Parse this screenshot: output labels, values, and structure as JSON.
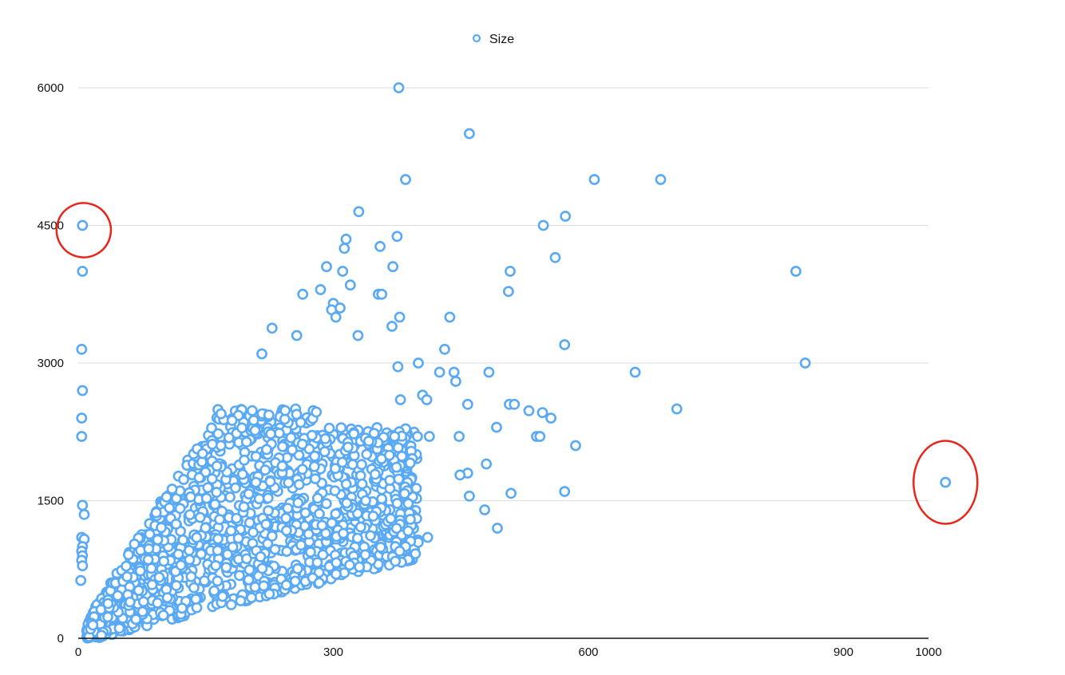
{
  "chart_data": {
    "type": "scatter",
    "title": "",
    "xlabel": "",
    "ylabel": "",
    "xlim": [
      0,
      1000
    ],
    "ylim": [
      0,
      6000
    ],
    "x_ticks": [
      0,
      300,
      600,
      900,
      1000
    ],
    "y_ticks": [
      0,
      1500,
      3000,
      4500,
      6000
    ],
    "x_tick_labels": [
      "0",
      "300",
      "600",
      "900",
      "1000"
    ],
    "y_tick_labels": [
      "0",
      "1500",
      "3000",
      "4500",
      "6000"
    ],
    "grid": "horizontal",
    "legend": {
      "position": "top-center"
    },
    "series": [
      {
        "name": "Size",
        "color": "#5aa9f5",
        "marker": "hollow-circle",
        "points": [
          [
            377,
            6000
          ],
          [
            460,
            5500
          ],
          [
            385,
            5000
          ],
          [
            607,
            5000
          ],
          [
            685,
            5000
          ],
          [
            330,
            4650
          ],
          [
            573,
            4600
          ],
          [
            547,
            4500
          ],
          [
            375,
            4380
          ],
          [
            315,
            4350
          ],
          [
            313,
            4250
          ],
          [
            355,
            4270
          ],
          [
            561,
            4150
          ],
          [
            292,
            4050
          ],
          [
            370,
            4050
          ],
          [
            311,
            4000
          ],
          [
            508,
            4000
          ],
          [
            844,
            4000
          ],
          [
            320,
            3850
          ],
          [
            285,
            3800
          ],
          [
            353,
            3750
          ],
          [
            357,
            3750
          ],
          [
            264,
            3750
          ],
          [
            506,
            3780
          ],
          [
            300,
            3650
          ],
          [
            298,
            3580
          ],
          [
            308,
            3600
          ],
          [
            303,
            3500
          ],
          [
            378,
            3500
          ],
          [
            437,
            3500
          ],
          [
            369,
            3400
          ],
          [
            228,
            3380
          ],
          [
            257,
            3300
          ],
          [
            329,
            3300
          ],
          [
            216,
            3100
          ],
          [
            431,
            3150
          ],
          [
            572,
            3200
          ],
          [
            855,
            3000
          ],
          [
            400,
            3000
          ],
          [
            376,
            2960
          ],
          [
            655,
            2900
          ],
          [
            483,
            2900
          ],
          [
            442,
            2900
          ],
          [
            425,
            2900
          ],
          [
            704,
            2500
          ],
          [
            444,
            2800
          ],
          [
            405,
            2650
          ],
          [
            410,
            2600
          ],
          [
            379,
            2600
          ],
          [
            458,
            2550
          ],
          [
            507,
            2550
          ],
          [
            513,
            2550
          ],
          [
            530,
            2480
          ],
          [
            546,
            2460
          ],
          [
            556,
            2400
          ],
          [
            492,
            2300
          ],
          [
            539,
            2200
          ],
          [
            543,
            2200
          ],
          [
            585,
            2100
          ],
          [
            413,
            2200
          ],
          [
            448,
            2200
          ],
          [
            399,
            2200
          ],
          [
            372,
            2200
          ],
          [
            480,
            1900
          ],
          [
            458,
            1800
          ],
          [
            449,
            1780
          ],
          [
            572,
            1600
          ],
          [
            509,
            1580
          ],
          [
            460,
            1550
          ],
          [
            478,
            1400
          ],
          [
            493,
            1200
          ],
          [
            411,
            1100
          ],
          [
            373,
            1000
          ],
          [
            385,
            1000
          ],
          [
            378,
            950
          ],
          [
            373,
            840
          ],
          [
            1020,
            1700
          ],
          [
            5,
            4500
          ],
          [
            5,
            4000
          ],
          [
            4,
            3150
          ],
          [
            5,
            2700
          ],
          [
            4,
            2400
          ],
          [
            4,
            2200
          ],
          [
            5,
            1450
          ],
          [
            7,
            1350
          ],
          [
            4,
            1100
          ],
          [
            7,
            1080
          ],
          [
            5,
            1000
          ],
          [
            4,
            950
          ],
          [
            5,
            900
          ],
          [
            4,
            850
          ],
          [
            5,
            790
          ],
          [
            3,
            630
          ]
        ],
        "dense_cluster": {
          "description": "thousands of overlapping points in a wedge",
          "x_range": [
            10,
            400
          ],
          "y_range": [
            0,
            2500
          ]
        }
      }
    ]
  },
  "annotations": [
    {
      "shape": "ellipse",
      "color": "#e8261c",
      "target_point": [
        5,
        4500
      ]
    },
    {
      "shape": "ellipse",
      "color": "#e8261c",
      "target_point": [
        1020,
        1700
      ]
    }
  ]
}
